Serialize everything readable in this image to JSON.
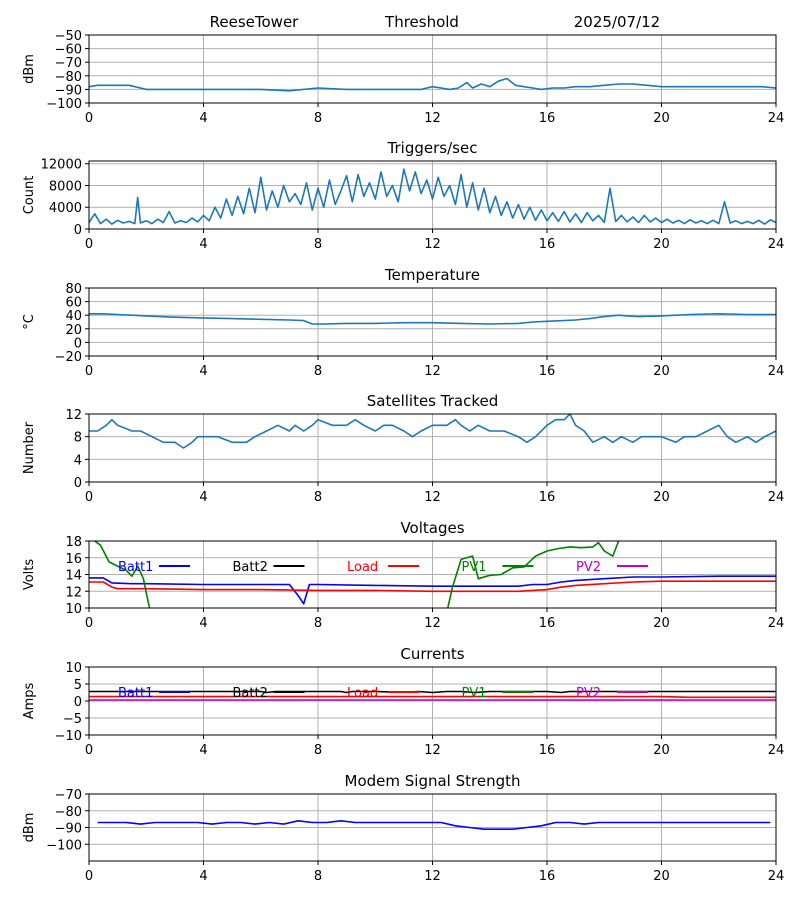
{
  "header": {
    "station": "ReeseTower",
    "mode": "Threshold",
    "date": "2025/07/12"
  },
  "chart_data": [
    {
      "id": "signal",
      "type": "line",
      "title": "",
      "xlabel": "",
      "ylabel": "dBm",
      "xlim": [
        0,
        24
      ],
      "ylim": [
        -100,
        -50
      ],
      "xticks": [
        0,
        4,
        8,
        12,
        16,
        20,
        24
      ],
      "yticks": [
        -100,
        -90,
        -80,
        -70,
        -60,
        -50
      ],
      "grid": true,
      "series": [
        {
          "color": "#1f77b4",
          "x": [
            0,
            0.3,
            0.6,
            1.0,
            1.4,
            2.0,
            3,
            4,
            5,
            6,
            7,
            8,
            9,
            10,
            11,
            11.6,
            12.0,
            12.3,
            12.6,
            12.9,
            13.2,
            13.4,
            13.7,
            14.0,
            14.3,
            14.6,
            14.9,
            15.2,
            15.5,
            15.8,
            16.2,
            16.6,
            17.0,
            17.5,
            18,
            18.5,
            19,
            19.5,
            20,
            21,
            22,
            23,
            23.5,
            24
          ],
          "y": [
            -88,
            -87,
            -87,
            -87,
            -87,
            -90,
            -90,
            -90,
            -90,
            -90,
            -91,
            -89,
            -90,
            -90,
            -90,
            -90,
            -88,
            -89,
            -90,
            -89,
            -85,
            -89,
            -86,
            -88,
            -84,
            -82,
            -87,
            -88,
            -89,
            -90,
            -89,
            -89,
            -88,
            -88,
            -87,
            -86,
            -86,
            -87,
            -88,
            -88,
            -88,
            -88,
            -88,
            -89
          ]
        }
      ]
    },
    {
      "id": "triggers",
      "type": "line",
      "title": "Triggers/sec",
      "xlabel": "",
      "ylabel": "Count",
      "xlim": [
        0,
        24
      ],
      "ylim": [
        0,
        12500
      ],
      "xticks": [
        0,
        4,
        8,
        12,
        16,
        20,
        24
      ],
      "yticks": [
        0,
        4000,
        8000,
        12000
      ],
      "grid": true,
      "series": [
        {
          "color": "#1f77b4",
          "x": [
            0,
            0.2,
            0.4,
            0.6,
            0.8,
            1.0,
            1.2,
            1.4,
            1.6,
            1.7,
            1.8,
            2.0,
            2.2,
            2.4,
            2.6,
            2.8,
            3.0,
            3.2,
            3.4,
            3.6,
            3.8,
            4.0,
            4.2,
            4.4,
            4.6,
            4.8,
            5.0,
            5.2,
            5.4,
            5.6,
            5.8,
            6.0,
            6.2,
            6.4,
            6.6,
            6.8,
            7.0,
            7.2,
            7.4,
            7.6,
            7.8,
            8.0,
            8.2,
            8.4,
            8.6,
            8.8,
            9.0,
            9.2,
            9.4,
            9.6,
            9.8,
            10.0,
            10.2,
            10.4,
            10.6,
            10.8,
            11.0,
            11.2,
            11.4,
            11.6,
            11.8,
            12.0,
            12.2,
            12.4,
            12.6,
            12.8,
            13.0,
            13.2,
            13.4,
            13.6,
            13.8,
            14.0,
            14.2,
            14.4,
            14.6,
            14.8,
            15.0,
            15.2,
            15.4,
            15.6,
            15.8,
            16.0,
            16.2,
            16.4,
            16.6,
            16.8,
            17.0,
            17.2,
            17.4,
            17.6,
            17.8,
            18.0,
            18.2,
            18.4,
            18.6,
            18.8,
            19.0,
            19.2,
            19.4,
            19.6,
            19.8,
            20.0,
            20.2,
            20.4,
            20.6,
            20.8,
            21.0,
            21.2,
            21.4,
            21.6,
            21.8,
            22.0,
            22.2,
            22.4,
            22.6,
            22.8,
            23.0,
            23.2,
            23.4,
            23.6,
            23.8,
            24.0
          ],
          "y": [
            1200,
            2800,
            1000,
            1800,
            900,
            1600,
            1100,
            1400,
            1000,
            5800,
            1100,
            1500,
            1000,
            1800,
            1200,
            3200,
            1100,
            1500,
            1200,
            2000,
            1300,
            2500,
            1500,
            4000,
            2000,
            5500,
            2500,
            6000,
            2800,
            7500,
            3000,
            9500,
            3500,
            7000,
            4000,
            8000,
            5000,
            6500,
            4500,
            8500,
            3500,
            7500,
            4000,
            9000,
            4500,
            7000,
            9800,
            5000,
            10000,
            6000,
            8500,
            5500,
            10500,
            6000,
            8000,
            5000,
            11000,
            7000,
            10500,
            6500,
            9000,
            5500,
            9500,
            6000,
            8000,
            4500,
            10000,
            4000,
            8500,
            3500,
            7500,
            3000,
            6000,
            2500,
            5000,
            2000,
            4500,
            1800,
            4000,
            1600,
            3500,
            1500,
            3000,
            1400,
            3200,
            1300,
            2800,
            1200,
            3000,
            1500,
            2500,
            1200,
            7500,
            1400,
            2500,
            1300,
            2200,
            1200,
            2500,
            1300,
            2000,
            1200,
            1800,
            1100,
            1600,
            1000,
            1700,
            1100,
            1500,
            1000,
            1600,
            1000,
            5000,
            1100,
            1500,
            1000,
            1400,
            1000,
            1600,
            900,
            1700,
            1200
          ]
        }
      ]
    },
    {
      "id": "temperature",
      "type": "line",
      "title": "Temperature",
      "xlabel": "",
      "ylabel": "°C",
      "xlim": [
        0,
        24
      ],
      "ylim": [
        -20,
        80
      ],
      "xticks": [
        0,
        4,
        8,
        12,
        16,
        20,
        24
      ],
      "yticks": [
        -20,
        0,
        20,
        40,
        60,
        80
      ],
      "grid": true,
      "series": [
        {
          "color": "#1f77b4",
          "x": [
            0,
            0.5,
            1,
            2,
            3,
            4,
            5,
            6,
            7,
            7.5,
            7.8,
            8.2,
            9,
            10,
            11,
            12,
            13,
            14,
            15,
            15.5,
            16,
            17,
            17.5,
            18,
            18.5,
            18.8,
            19.2,
            20,
            21,
            22,
            23,
            24
          ],
          "y": [
            42,
            42,
            41,
            39,
            37,
            36,
            35,
            34,
            33,
            32,
            27,
            27,
            28,
            28,
            29,
            29,
            28,
            27,
            28,
            30,
            31,
            33,
            35,
            38,
            40,
            39,
            38,
            39,
            41,
            42,
            41,
            41
          ]
        }
      ]
    },
    {
      "id": "satellites",
      "type": "line",
      "title": "Satellites Tracked",
      "xlabel": "",
      "ylabel": "Number",
      "xlim": [
        0,
        24
      ],
      "ylim": [
        0,
        12
      ],
      "xticks": [
        0,
        4,
        8,
        12,
        16,
        20,
        24
      ],
      "yticks": [
        0,
        4,
        8,
        12
      ],
      "grid": true,
      "series": [
        {
          "color": "#1f77b4",
          "x": [
            0,
            0.3,
            0.6,
            0.8,
            1.0,
            1.5,
            1.8,
            2.2,
            2.6,
            3.0,
            3.3,
            3.6,
            3.8,
            4.0,
            4.5,
            5.0,
            5.5,
            5.8,
            6.2,
            6.6,
            7.0,
            7.2,
            7.5,
            7.8,
            8.0,
            8.5,
            9.0,
            9.3,
            9.6,
            10.0,
            10.3,
            10.6,
            11.0,
            11.3,
            11.6,
            12.0,
            12.5,
            12.8,
            13.0,
            13.3,
            13.6,
            14.0,
            14.5,
            15.0,
            15.3,
            15.6,
            16.0,
            16.3,
            16.6,
            16.8,
            17.0,
            17.3,
            17.6,
            18.0,
            18.3,
            18.6,
            19.0,
            19.3,
            19.6,
            20.0,
            20.5,
            20.8,
            21.2,
            21.6,
            22.0,
            22.3,
            22.6,
            23.0,
            23.3,
            23.6,
            24.0
          ],
          "y": [
            9,
            9,
            10,
            11,
            10,
            9,
            9,
            8,
            7,
            7,
            6,
            7,
            8,
            8,
            8,
            7,
            7,
            8,
            9,
            10,
            9,
            10,
            9,
            10,
            11,
            10,
            10,
            11,
            10,
            9,
            10,
            10,
            9,
            8,
            9,
            10,
            10,
            11,
            10,
            9,
            10,
            9,
            9,
            8,
            7,
            8,
            10,
            11,
            11,
            12,
            10,
            9,
            7,
            8,
            7,
            8,
            7,
            8,
            8,
            8,
            7,
            8,
            8,
            9,
            10,
            8,
            7,
            8,
            7,
            8,
            9
          ]
        }
      ]
    },
    {
      "id": "voltages",
      "type": "line",
      "title": "Voltages",
      "xlabel": "",
      "ylabel": "Volts",
      "xlim": [
        0,
        24
      ],
      "ylim": [
        10,
        18
      ],
      "xticks": [
        0,
        4,
        8,
        12,
        16,
        20,
        24
      ],
      "yticks": [
        10,
        12,
        14,
        16,
        18
      ],
      "grid": true,
      "legend": [
        "Batt1",
        "Batt2",
        "Load",
        "PV1",
        "PV2"
      ],
      "legend_colors": [
        "#0000ff",
        "#000000",
        "#ff0000",
        "#008000",
        "#bf00bf"
      ],
      "series": [
        {
          "name": "Batt1",
          "color": "#0000ff",
          "x": [
            0,
            0.5,
            0.8,
            1.5,
            2,
            4,
            6,
            7.0,
            7.3,
            7.5,
            7.7,
            8.0,
            10,
            12,
            14,
            15,
            15.5,
            16,
            16.5,
            17,
            18,
            19,
            20,
            22,
            24
          ],
          "y": [
            13.6,
            13.6,
            13.0,
            12.9,
            12.9,
            12.8,
            12.8,
            12.8,
            11.5,
            10.5,
            12.8,
            12.8,
            12.7,
            12.6,
            12.6,
            12.6,
            12.8,
            12.8,
            13.1,
            13.3,
            13.5,
            13.7,
            13.7,
            13.8,
            13.8
          ]
        },
        {
          "name": "Load",
          "color": "#ff0000",
          "x": [
            0,
            0.5,
            0.8,
            1.0,
            2,
            4,
            6,
            8,
            10,
            12,
            14,
            15,
            15.5,
            16,
            16.5,
            17,
            18,
            19,
            20,
            22,
            24
          ],
          "y": [
            13.1,
            13.1,
            12.5,
            12.3,
            12.3,
            12.2,
            12.2,
            12.1,
            12.1,
            12.0,
            12.0,
            12.0,
            12.1,
            12.2,
            12.5,
            12.7,
            12.9,
            13.1,
            13.2,
            13.2,
            13.2
          ]
        },
        {
          "name": "PV1",
          "color": "#008000",
          "x": [
            0.2,
            0.4,
            0.7,
            1.0,
            1.3,
            1.5,
            1.7,
            1.9,
            2.05,
            2.15,
            12.5,
            12.7,
            13.0,
            13.4,
            13.6,
            14.0,
            14.4,
            14.8,
            15.2,
            15.6,
            16.0,
            16.4,
            16.8,
            17.2,
            17.6,
            17.8,
            18.0,
            18.3,
            18.5
          ],
          "y": [
            18.0,
            17.5,
            15.5,
            15.0,
            14.5,
            13.8,
            15.0,
            13.5,
            11.0,
            9.5,
            9.5,
            12.5,
            15.8,
            16.2,
            13.5,
            13.9,
            14.0,
            14.8,
            14.9,
            16.2,
            16.8,
            17.1,
            17.3,
            17.2,
            17.3,
            17.8,
            16.8,
            16.2,
            18.0
          ]
        }
      ]
    },
    {
      "id": "currents",
      "type": "line",
      "title": "Currents",
      "xlabel": "",
      "ylabel": "Amps",
      "xlim": [
        0,
        24
      ],
      "ylim": [
        -10,
        10
      ],
      "xticks": [
        0,
        4,
        8,
        12,
        16,
        20,
        24
      ],
      "yticks": [
        -10,
        -5,
        0,
        5,
        10
      ],
      "grid": true,
      "legend": [
        "Batt1",
        "Batt2",
        "Load",
        "PV1",
        "PV2"
      ],
      "legend_colors": [
        "#0000ff",
        "#000000",
        "#ff0000",
        "#008000",
        "#bf00bf"
      ],
      "series": [
        {
          "name": "Batt2",
          "color": "#000000",
          "x": [
            0,
            2,
            4,
            6,
            6.2,
            6.5,
            8,
            8.8,
            9.0,
            9.2,
            10,
            11,
            11.5,
            12,
            12.5,
            13,
            13.5,
            14,
            15,
            16,
            16.5,
            16.8,
            17,
            18,
            20,
            22,
            24
          ],
          "y": [
            2.8,
            2.8,
            2.8,
            2.8,
            2.5,
            2.8,
            2.8,
            2.8,
            2.5,
            2.8,
            2.8,
            2.6,
            2.8,
            2.5,
            2.8,
            2.8,
            2.5,
            2.8,
            2.8,
            2.8,
            2.5,
            2.8,
            2.8,
            2.8,
            2.8,
            2.8,
            2.8
          ]
        },
        {
          "name": "Load",
          "color": "#ff0000",
          "x": [
            0,
            4,
            8,
            12,
            16,
            20,
            21,
            24
          ],
          "y": [
            1.3,
            1.3,
            1.3,
            1.3,
            1.3,
            1.3,
            1.1,
            1.1
          ]
        },
        {
          "name": "PV2",
          "color": "#bf00bf",
          "x": [
            0,
            24
          ],
          "y": [
            0.3,
            0.3
          ]
        }
      ]
    },
    {
      "id": "modem",
      "type": "line",
      "title": "Modem Signal Strength",
      "xlabel": "",
      "ylabel": "dBm",
      "xlim": [
        0,
        24
      ],
      "ylim": [
        -110,
        -70
      ],
      "xticks": [
        0,
        4,
        8,
        12,
        16,
        20,
        24
      ],
      "yticks": [
        -100,
        -90,
        -80,
        -70
      ],
      "grid": true,
      "series": [
        {
          "color": "#0000ff",
          "x": [
            0.3,
            1.3,
            1.8,
            2.3,
            3.3,
            3.8,
            4.3,
            4.8,
            5.3,
            5.8,
            6.3,
            6.8,
            7.3,
            7.8,
            8.3,
            8.8,
            9.3,
            10.3,
            11.3,
            12.3,
            12.8,
            13.3,
            13.8,
            14.3,
            14.8,
            15.3,
            15.8,
            16.3,
            16.8,
            17.3,
            17.8,
            18.3,
            19.3,
            20.3,
            21.3,
            22.3,
            23.3,
            23.8
          ],
          "y": [
            -87,
            -87,
            -88,
            -87,
            -87,
            -87,
            -88,
            -87,
            -87,
            -88,
            -87,
            -88,
            -86,
            -87,
            -87,
            -86,
            -87,
            -87,
            -87,
            -87,
            -89,
            -90,
            -91,
            -91,
            -91,
            -90,
            -89,
            -87,
            -87,
            -88,
            -87,
            -87,
            -87,
            -87,
            -87,
            -87,
            -87,
            -87
          ]
        }
      ]
    }
  ]
}
